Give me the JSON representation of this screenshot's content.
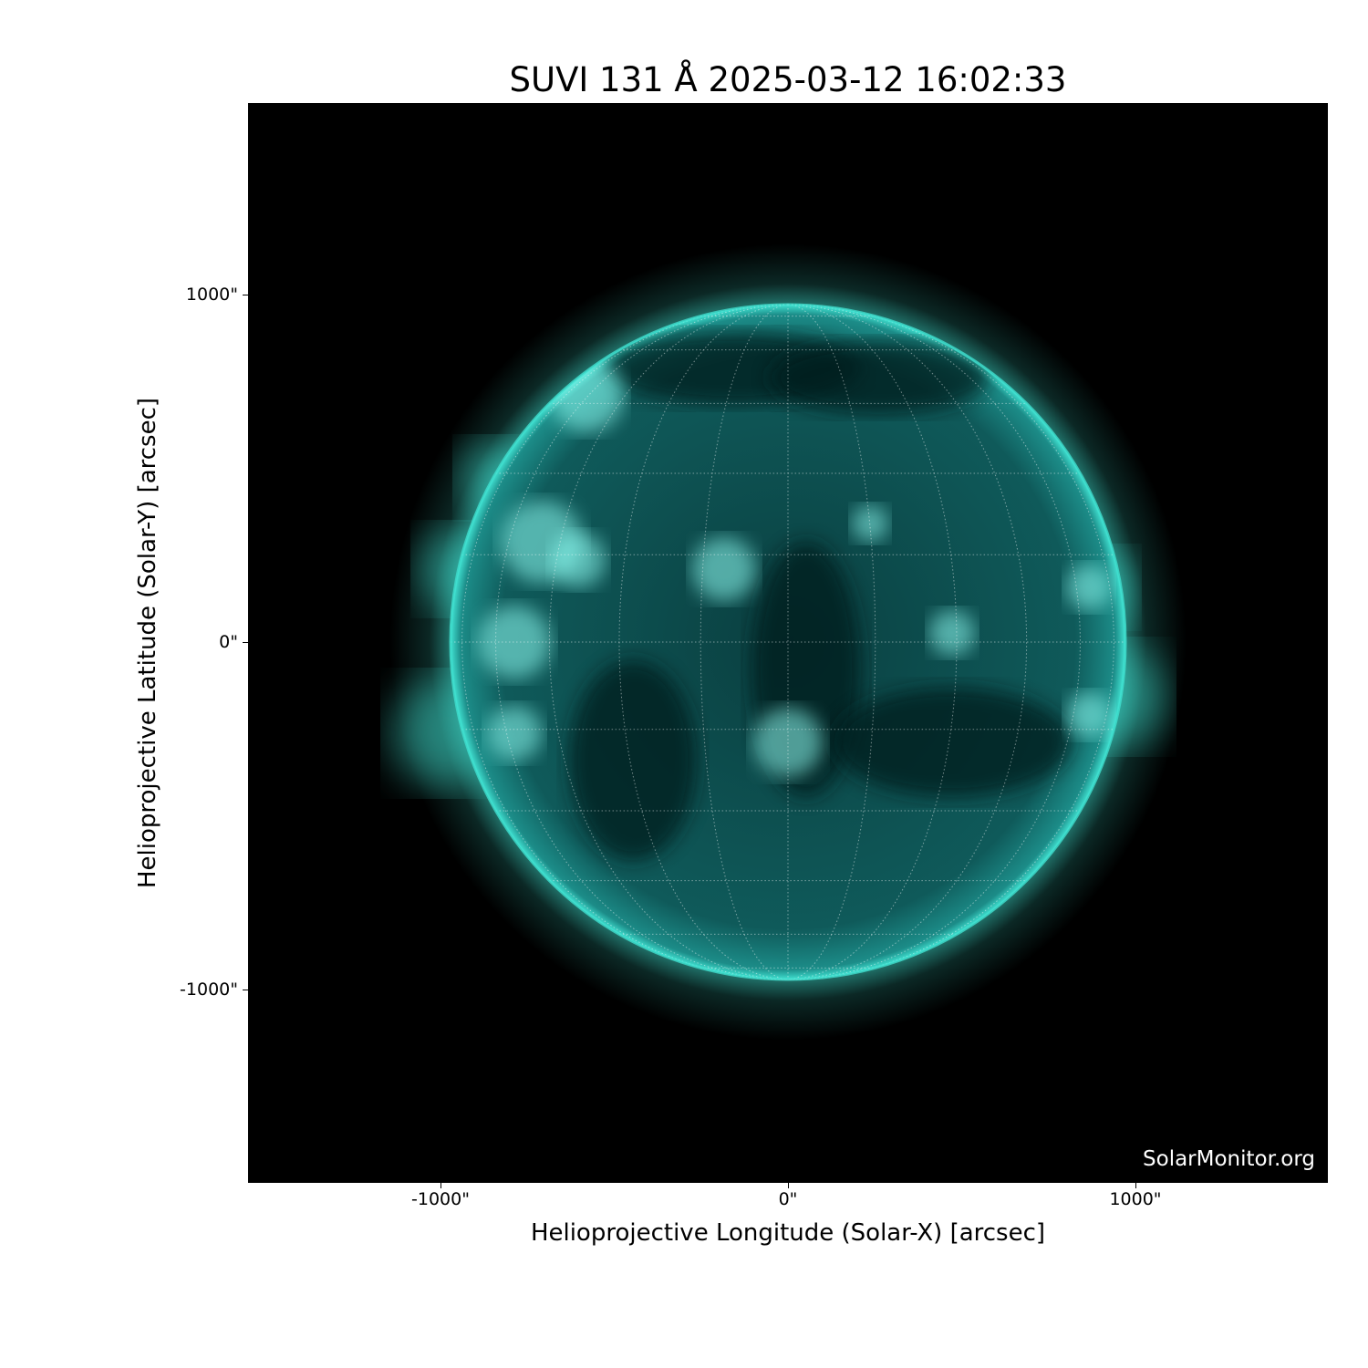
{
  "title": "SUVI 131 Å 2025-03-12 16:02:33",
  "xlabel": "Helioprojective Longitude (Solar-X) [arcsec]",
  "ylabel": "Helioprojective Latitude (Solar-Y) [arcsec]",
  "credit": "SolarMonitor.org",
  "x_ticks": [
    {
      "value": -1000,
      "label": "-1000\""
    },
    {
      "value": 0,
      "label": "0\""
    },
    {
      "value": 1000,
      "label": "1000\""
    }
  ],
  "y_ticks": [
    {
      "value": 1000,
      "label": "1000\""
    },
    {
      "value": 0,
      "label": "0\""
    },
    {
      "value": -1000,
      "label": "-1000\""
    }
  ],
  "colors": {
    "disk": "#0f5a5a",
    "limb": "#40e0d0",
    "active_region": "#8ffff4",
    "background": "#000000"
  },
  "grid": true
}
